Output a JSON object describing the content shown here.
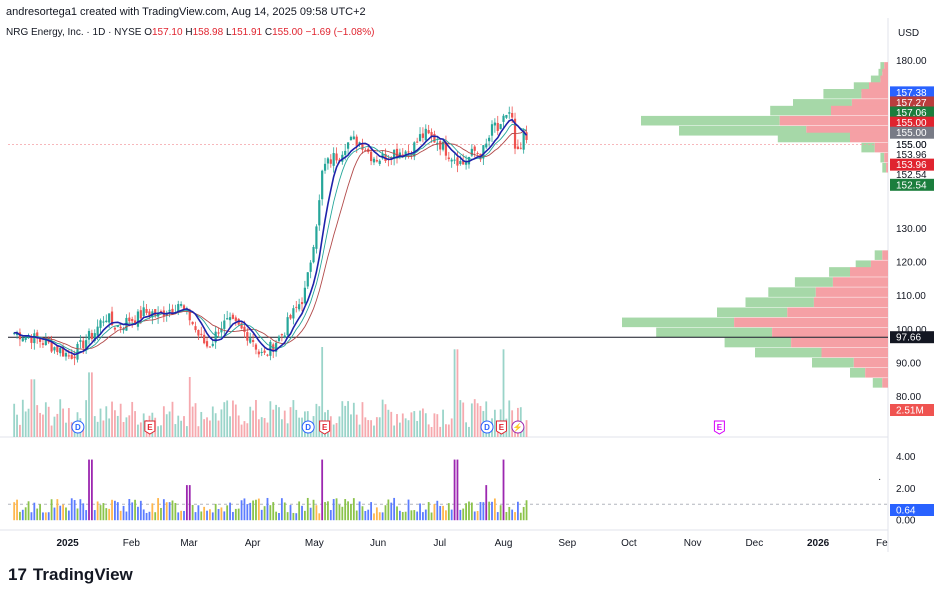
{
  "header": {
    "author_line": "andresortega1 created with TradingView.com, Aug 14, 2025 09:58 UTC+2",
    "symbol": "NRG Energy, Inc. · 1D · NYSE",
    "open_label": "O",
    "open": "157.10",
    "high_label": "H",
    "high": "158.98",
    "low_label": "L",
    "low": "151.91",
    "close_label": "C",
    "close": "155.00",
    "change": "−1.69 (−1.08%)"
  },
  "currency": "USD",
  "brand": {
    "logo": "17",
    "name": "TradingView"
  },
  "colors": {
    "up": "#26a69a",
    "down": "#ef5350",
    "ma_fast": "#1e22aa",
    "ma_mid": "#26a69a",
    "ma_slow": "#b24b4b",
    "vp_up": "#a6d8a8",
    "vp_down": "#f5a0a5",
    "vp_up_hl": "#81c784",
    "vp_down_hl": "#f27379",
    "osc_purple": "#9c27b0",
    "osc_green": "#8bc34a",
    "osc_orange": "#ffb74d",
    "osc_blue": "#5b7cff"
  },
  "chart_data": {
    "type": "candlestick",
    "price_axis": {
      "ylim": [
        76,
        184
      ],
      "ticks": [
        "180.00",
        "155.00",
        "130.00",
        "120.00",
        "110.00",
        "100.00",
        "90.00",
        "80.00"
      ],
      "tick_values": [
        180,
        155,
        130,
        120,
        110,
        100,
        90,
        80
      ]
    },
    "lower_axis": {
      "ticks": [
        "4.00",
        "2.00",
        "0.00"
      ],
      "tick_values": [
        4,
        2,
        0
      ]
    },
    "x_labels": [
      "2025",
      "Feb",
      "Mar",
      "Apr",
      "May",
      "Jun",
      "Jul",
      "Aug",
      "Sep",
      "Oct",
      "Nov",
      "Dec",
      "2026",
      "Fe"
    ],
    "x_label_days": [
      1,
      32,
      60,
      91,
      121,
      152,
      182,
      213,
      244,
      274,
      305,
      335,
      366,
      397
    ],
    "x_range_days": [
      -28,
      400
    ],
    "last_day": 225,
    "price_path": [
      [
        -25,
        99
      ],
      [
        -18,
        98
      ],
      [
        -10,
        96
      ],
      [
        -3,
        94
      ],
      [
        2,
        92
      ],
      [
        6,
        94
      ],
      [
        10,
        97
      ],
      [
        14,
        99
      ],
      [
        18,
        103
      ],
      [
        20,
        104
      ],
      [
        23,
        101
      ],
      [
        27,
        101
      ],
      [
        31,
        103
      ],
      [
        34,
        103
      ],
      [
        38,
        105
      ],
      [
        42,
        105
      ],
      [
        45,
        104
      ],
      [
        49,
        106
      ],
      [
        52,
        106
      ],
      [
        55,
        108
      ],
      [
        58,
        105
      ],
      [
        61,
        103
      ],
      [
        63,
        100
      ],
      [
        66,
        97
      ],
      [
        69,
        95
      ],
      [
        72,
        97
      ],
      [
        75,
        101
      ],
      [
        79,
        102
      ],
      [
        83,
        101
      ],
      [
        87,
        99
      ],
      [
        90,
        98
      ],
      [
        92,
        96
      ],
      [
        94,
        93
      ],
      [
        97,
        92
      ],
      [
        99,
        94
      ],
      [
        103,
        97
      ],
      [
        106,
        99
      ],
      [
        109,
        103
      ],
      [
        112,
        106
      ],
      [
        116,
        110
      ],
      [
        118,
        116
      ],
      [
        120,
        124
      ],
      [
        122,
        132
      ],
      [
        124,
        140
      ],
      [
        125,
        148
      ],
      [
        127,
        149
      ],
      [
        130,
        151
      ],
      [
        133,
        152
      ],
      [
        136,
        155
      ],
      [
        139,
        156
      ],
      [
        142,
        156
      ],
      [
        145,
        155
      ],
      [
        148,
        152
      ],
      [
        151,
        151
      ],
      [
        154,
        151
      ],
      [
        157,
        152
      ],
      [
        160,
        153
      ],
      [
        163,
        153
      ],
      [
        166,
        153
      ],
      [
        169,
        154
      ],
      [
        172,
        157
      ],
      [
        175,
        158
      ],
      [
        178,
        157
      ],
      [
        181,
        156
      ],
      [
        184,
        154
      ],
      [
        187,
        152
      ],
      [
        190,
        151
      ],
      [
        193,
        149
      ],
      [
        196,
        151
      ],
      [
        199,
        153
      ],
      [
        202,
        152
      ],
      [
        205,
        155
      ],
      [
        207,
        159
      ],
      [
        209,
        161
      ],
      [
        211,
        158
      ],
      [
        213,
        162
      ],
      [
        215,
        165
      ],
      [
        217,
        164
      ],
      [
        218,
        155
      ],
      [
        219,
        151
      ],
      [
        221,
        153
      ],
      [
        223,
        157
      ],
      [
        225,
        155
      ]
    ],
    "volume_spikes": [
      [
        12,
        30
      ],
      [
        125,
        52
      ],
      [
        190,
        50
      ],
      [
        213,
        50
      ],
      [
        -16,
        24
      ],
      [
        60,
        26
      ]
    ],
    "volume_label": "2.51M",
    "ma_fast_lag": 8,
    "ma_mid_lag": 12,
    "ma_slow_lag": 20,
    "volume_profile_upper": [
      [
        178,
        4,
        2
      ],
      [
        176,
        5,
        3
      ],
      [
        174,
        9,
        4
      ],
      [
        172,
        18,
        10
      ],
      [
        170,
        34,
        14
      ],
      [
        167,
        50,
        19
      ],
      [
        165,
        62,
        30
      ],
      [
        162,
        130,
        57
      ],
      [
        159,
        110,
        43
      ],
      [
        157,
        58,
        20
      ],
      [
        154,
        14,
        7
      ],
      [
        151,
        4,
        2
      ],
      [
        148,
        3,
        1
      ]
    ],
    "volume_profile_lower": [
      [
        122,
        7,
        3
      ],
      [
        119,
        17,
        9
      ],
      [
        117,
        31,
        20
      ],
      [
        114,
        49,
        29
      ],
      [
        111,
        63,
        38
      ],
      [
        108,
        75,
        39
      ],
      [
        105,
        90,
        53
      ],
      [
        102,
        140,
        81
      ],
      [
        99,
        122,
        61
      ],
      [
        96,
        86,
        51
      ],
      [
        93,
        70,
        35
      ],
      [
        90,
        40,
        18
      ],
      [
        87,
        20,
        12
      ],
      [
        84,
        8,
        3
      ]
    ],
    "markers": [
      {
        "day": 6,
        "type": "D"
      },
      {
        "day": 41,
        "type": "E"
      },
      {
        "day": 118,
        "type": "D"
      },
      {
        "day": 126,
        "type": "E"
      },
      {
        "day": 205,
        "type": "D"
      },
      {
        "day": 212,
        "type": "E"
      },
      {
        "day": 220,
        "type": "bolt"
      },
      {
        "day": 318,
        "type": "E-future"
      }
    ],
    "price_tags": [
      {
        "value": "157.38",
        "y_price": 170.5,
        "color": "#2962ff"
      },
      {
        "value": "157.27",
        "y_price": 167.5,
        "color": "#ba3d3d"
      },
      {
        "value": "157.06",
        "y_price": 164.5,
        "color": "#1b7e3d"
      },
      {
        "value": "155.00",
        "y_price": 161.5,
        "color": "#e0242f"
      },
      {
        "value": "155.00",
        "y_price": 158.5,
        "color": "#787b86"
      },
      {
        "value": "155.00",
        "y_price": 155.0,
        "color": "none"
      },
      {
        "value": "153.96",
        "y_price": 152.0,
        "color": "none"
      },
      {
        "value": "153.96",
        "y_price": 149.0,
        "color": "#e0242f"
      },
      {
        "value": "152.54",
        "y_price": 146.0,
        "color": "none"
      },
      {
        "value": "152.54",
        "y_price": 143.0,
        "color": "#1b7e3d"
      }
    ],
    "hline_label": "97.66",
    "hline_price": 97.66,
    "dotted_price_line": 155,
    "osc_last": "0.64",
    "osc_dashed": 1.0,
    "osc_ylim": [
      -0.3,
      4.4
    ]
  }
}
